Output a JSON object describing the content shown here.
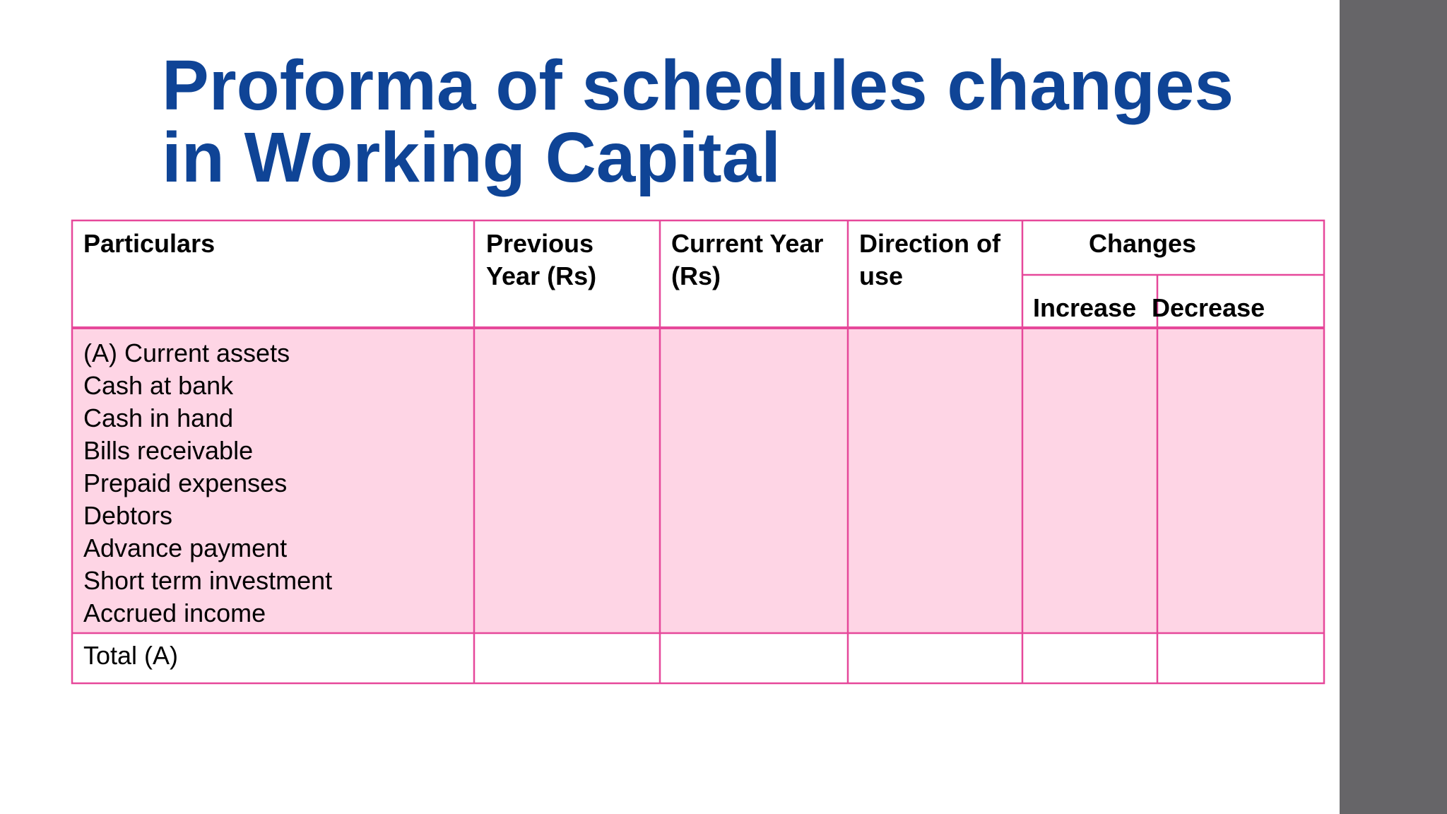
{
  "title": "Proforma of schedules changes in Working Capital",
  "table": {
    "header": [
      "Particulars",
      "Previous Year (Rs)",
      "Current Year (Rs)",
      "Direction of use"
    ],
    "changes": {
      "label": "Changes",
      "subheaders": [
        "Increase",
        "Decrease"
      ]
    },
    "rows": [
      [
        "(A) Current assets",
        "Cash at bank",
        "Cash in hand",
        "Bills receivable",
        "Prepaid expenses",
        "Debtors",
        "Advance payment",
        "Short term investment",
        "Accrued income"
      ],
      [
        "Total (A)"
      ]
    ]
  }
}
